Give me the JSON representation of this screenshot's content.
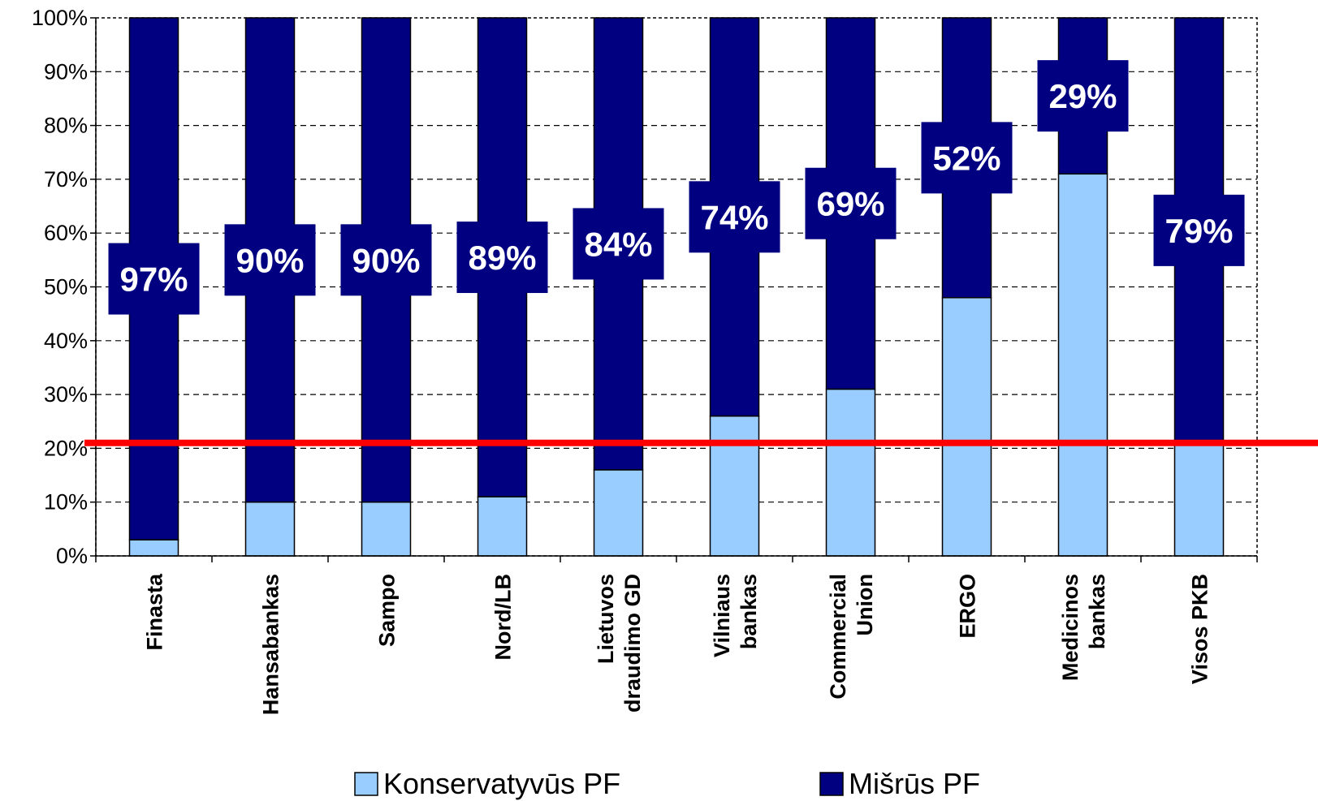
{
  "chart_data": {
    "type": "bar",
    "stacked": true,
    "title": "",
    "xlabel": "",
    "ylabel": "",
    "ylim": [
      0,
      100
    ],
    "y_ticks": [
      "0%",
      "10%",
      "20%",
      "30%",
      "40%",
      "50%",
      "60%",
      "70%",
      "80%",
      "90%",
      "100%"
    ],
    "grid": true,
    "legend_position": "bottom",
    "categories": [
      [
        "Finasta"
      ],
      [
        "Hansabankas"
      ],
      [
        "Sampo"
      ],
      [
        "Nord/LB"
      ],
      [
        "Lietuvos",
        "draudimo GD"
      ],
      [
        "Vilniaus",
        "bankas"
      ],
      [
        "Commercial",
        "Union"
      ],
      [
        "ERGO"
      ],
      [
        "Medicinos",
        "bankas"
      ],
      [
        "Visos PKB"
      ]
    ],
    "series": [
      {
        "name": "Konservatyvūs PF",
        "color": "#99ccff",
        "values": [
          3,
          10,
          10,
          11,
          16,
          26,
          31,
          48,
          71,
          21
        ]
      },
      {
        "name": "Mišrūs PF",
        "color": "#000080",
        "values": [
          97,
          90,
          90,
          89,
          84,
          74,
          69,
          52,
          29,
          79
        ]
      }
    ],
    "data_labels": [
      "97%",
      "90%",
      "90%",
      "89%",
      "84%",
      "74%",
      "69%",
      "52%",
      "29%",
      "79%"
    ],
    "reference_line": {
      "value": 21,
      "color": "#ff0000"
    }
  }
}
